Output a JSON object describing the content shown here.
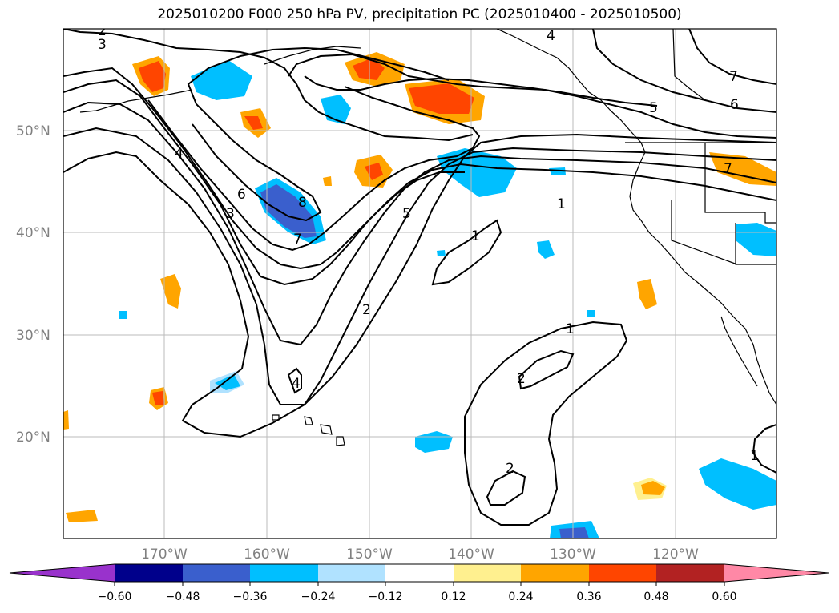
{
  "title": "2025010200 F000 250 hPa PV, precipitation PC (2025010400 - 2025010500)",
  "map": {
    "lat_labels": [
      "50°N",
      "40°N",
      "30°N",
      "20°N"
    ],
    "lon_labels": [
      "170°W",
      "160°W",
      "150°W",
      "140°W",
      "130°W",
      "120°W"
    ],
    "contour_labels": [
      {
        "text": "2"
      },
      {
        "text": "3"
      },
      {
        "text": "4"
      },
      {
        "text": "4"
      },
      {
        "text": "6"
      },
      {
        "text": "3"
      },
      {
        "text": "8"
      },
      {
        "text": "7"
      },
      {
        "text": "5"
      },
      {
        "text": "2"
      },
      {
        "text": "1"
      },
      {
        "text": "1"
      },
      {
        "text": "1"
      },
      {
        "text": "2"
      },
      {
        "text": "4"
      },
      {
        "text": "2"
      },
      {
        "text": "7"
      },
      {
        "text": "6"
      },
      {
        "text": "5"
      },
      {
        "text": "7"
      },
      {
        "text": "1"
      }
    ]
  },
  "colorbar": {
    "colors": [
      "#9932cc",
      "#00008b",
      "#3a5fcd",
      "#00bfff",
      "#b0e2ff",
      "#ffffff",
      "#fff08f",
      "#ffa500",
      "#ff4500",
      "#b22222",
      "#ff88a6"
    ],
    "tick_labels": [
      "−0.60",
      "−0.48",
      "−0.36",
      "−0.24",
      "−0.12",
      "0.12",
      "0.24",
      "0.36",
      "0.48",
      "0.60"
    ]
  }
}
